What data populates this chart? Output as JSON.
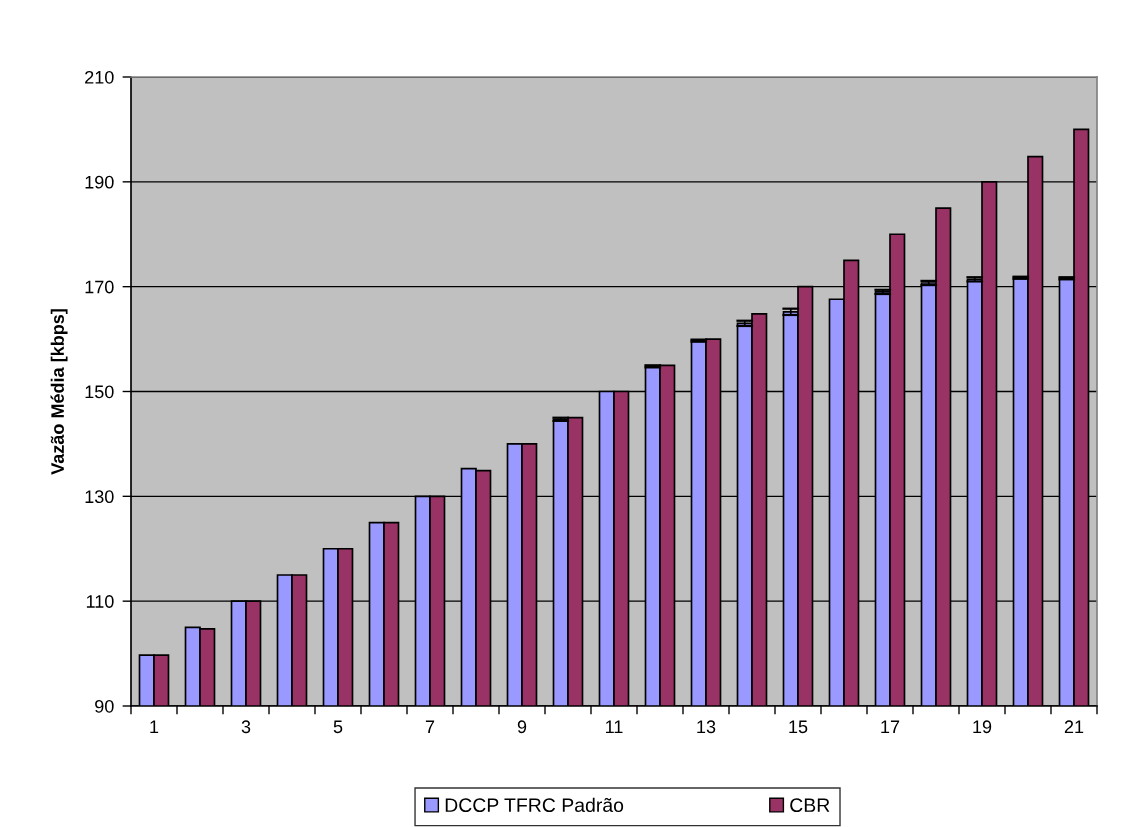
{
  "chart_data": {
    "type": "bar",
    "ylabel": "Vazão Média [kbps]",
    "categories": [
      "1",
      null,
      "3",
      null,
      "5",
      null,
      "7",
      null,
      "9",
      null,
      "11",
      null,
      "13",
      null,
      "15",
      null,
      "17",
      null,
      "19",
      null,
      "21"
    ],
    "series": [
      {
        "name": "DCCP TFRC Padrão",
        "color": "#9999ff",
        "values": [
          99.7,
          105,
          110,
          115,
          120,
          125,
          130,
          135.3,
          140,
          144.7,
          150,
          154.8,
          159.7,
          163,
          165.2,
          167.6,
          169,
          170.7,
          171.4,
          171.7,
          171.6
        ],
        "errors": [
          null,
          null,
          null,
          null,
          null,
          null,
          null,
          null,
          null,
          0.3,
          null,
          0.2,
          0.2,
          0.5,
          0.6,
          null,
          0.4,
          0.4,
          0.4,
          0.2,
          0.2
        ]
      },
      {
        "name": "CBR",
        "color": "#993366",
        "values": [
          99.7,
          104.7,
          110,
          115,
          120,
          125,
          130,
          134.9,
          140,
          145,
          150,
          155,
          160,
          164.8,
          170,
          175,
          180,
          185,
          190,
          194.8,
          200
        ]
      }
    ],
    "ylim": [
      90,
      210
    ],
    "yticks": [
      90,
      110,
      130,
      150,
      170,
      190,
      210
    ],
    "grid": "y",
    "legend": "bottom"
  }
}
